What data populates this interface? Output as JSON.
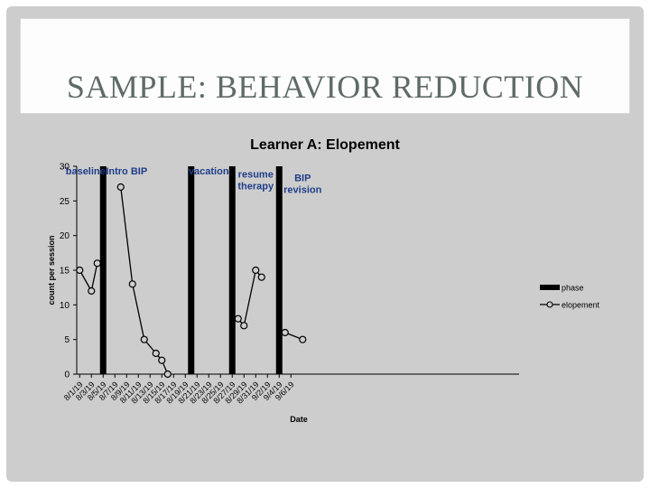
{
  "slide": {
    "title": "SAMPLE: BEHAVIOR REDUCTION"
  },
  "chart_data": {
    "type": "line",
    "title": "Learner A: Elopement",
    "xlabel": "Date",
    "ylabel": "count per session",
    "ylim": [
      0,
      30
    ],
    "yticks": [
      0,
      5,
      10,
      15,
      20,
      25,
      30
    ],
    "xticks": [
      "8/1/19",
      "8/3/19",
      "8/5/19",
      "8/7/19",
      "8/9/19",
      "8/11/19",
      "8/13/19",
      "8/15/19",
      "8/17/19",
      "8/19/19",
      "8/21/19",
      "8/23/19",
      "8/25/19",
      "8/27/19",
      "8/29/19",
      "8/31/19",
      "9/2/19",
      "9/4/19",
      "9/6/19"
    ],
    "grid": false,
    "legend_position": "right",
    "legend": [
      {
        "label": "phase",
        "kind": "bar"
      },
      {
        "label": "elopement",
        "kind": "line-marker"
      }
    ],
    "phase_lines": [
      "8/5/19",
      "8/20/19",
      "8/27/19",
      "9/4/19"
    ],
    "phase_labels": [
      {
        "text": "baseline",
        "x": "8/2/19",
        "y": 29.5
      },
      {
        "text": "Intro BIP",
        "x": "8/9/19",
        "y": 29.5
      },
      {
        "text": "vacation",
        "x": "8/23/19",
        "y": 29.5
      },
      {
        "text": "resume\ntherapy",
        "x": "8/31/19",
        "y": 29
      },
      {
        "text": "BIP\nrevision",
        "x": "9/8/19",
        "y": 28.5
      }
    ],
    "series": [
      {
        "name": "elopement",
        "segments": [
          [
            {
              "x": "8/1/19",
              "y": 15
            },
            {
              "x": "8/3/19",
              "y": 12
            },
            {
              "x": "8/4/19",
              "y": 16
            }
          ],
          [
            {
              "x": "8/8/19",
              "y": 27
            },
            {
              "x": "8/10/19",
              "y": 13
            },
            {
              "x": "8/12/19",
              "y": 5
            },
            {
              "x": "8/14/19",
              "y": 3
            },
            {
              "x": "8/15/19",
              "y": 2
            },
            {
              "x": "8/16/19",
              "y": 0
            }
          ],
          [
            {
              "x": "8/28/19",
              "y": 8
            },
            {
              "x": "8/29/19",
              "y": 7
            },
            {
              "x": "8/31/19",
              "y": 15
            },
            {
              "x": "9/1/19",
              "y": 14
            }
          ],
          [
            {
              "x": "9/5/19",
              "y": 6
            },
            {
              "x": "9/8/19",
              "y": 5
            }
          ]
        ]
      }
    ]
  }
}
